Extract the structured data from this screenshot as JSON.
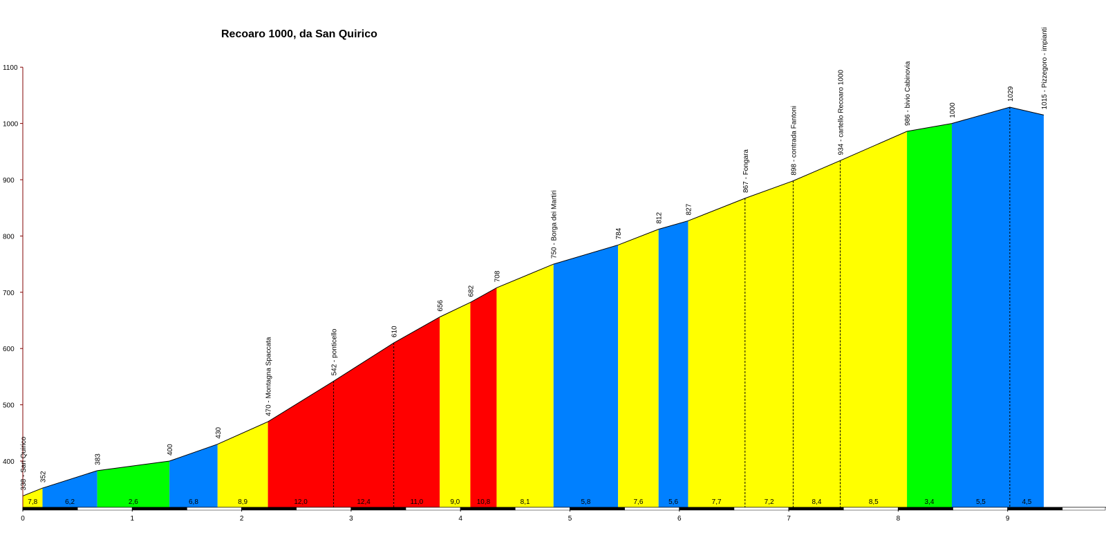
{
  "chart_data": {
    "type": "area",
    "title": "Recoaro 1000, da San Quirico",
    "xlabel": "",
    "ylabel": "",
    "xlim": [
      0,
      9.9
    ],
    "ylim": [
      320,
      1100
    ],
    "yticks": [
      400,
      500,
      600,
      700,
      800,
      900,
      1000,
      1100
    ],
    "xticks": [
      0,
      1,
      2,
      3,
      4,
      5,
      6,
      7,
      8,
      9
    ],
    "grid": false,
    "legend": "none",
    "colors": {
      "red": "#ff0000",
      "yellow": "#ffff00",
      "green": "#00ff00",
      "blue": "#0080ff",
      "axis": "#800000"
    },
    "points": [
      {
        "km": 0.0,
        "alt": 338,
        "label": "338 - San Quirico"
      },
      {
        "km": 0.18,
        "alt": 352,
        "label": "352"
      },
      {
        "km": 0.68,
        "alt": 383,
        "label": "383"
      },
      {
        "km": 1.34,
        "alt": 400,
        "label": "400"
      },
      {
        "km": 1.78,
        "alt": 430,
        "label": "430"
      },
      {
        "km": 2.24,
        "alt": 470,
        "label": "470 - Montagna Spaccata"
      },
      {
        "km": 2.84,
        "alt": 542,
        "label": "542 - ponticello"
      },
      {
        "km": 3.39,
        "alt": 610,
        "label": "610"
      },
      {
        "km": 3.81,
        "alt": 656,
        "label": "656"
      },
      {
        "km": 4.09,
        "alt": 682,
        "label": "682"
      },
      {
        "km": 4.33,
        "alt": 708,
        "label": "708"
      },
      {
        "km": 4.85,
        "alt": 750,
        "label": "750 - Borga dei Martiri"
      },
      {
        "km": 5.44,
        "alt": 784,
        "label": "784"
      },
      {
        "km": 5.81,
        "alt": 812,
        "label": "812"
      },
      {
        "km": 6.08,
        "alt": 827,
        "label": "827"
      },
      {
        "km": 6.6,
        "alt": 867,
        "label": "867 - Fongara"
      },
      {
        "km": 7.04,
        "alt": 898,
        "label": "898 - contrada Fantoni"
      },
      {
        "km": 7.47,
        "alt": 934,
        "label": "934 - cartello Recoaro 1000"
      },
      {
        "km": 8.08,
        "alt": 986,
        "label": "986 - bivio Cabinovia"
      },
      {
        "km": 8.49,
        "alt": 1000,
        "label": "1000"
      },
      {
        "km": 9.02,
        "alt": 1029,
        "label": "1029"
      },
      {
        "km": 9.33,
        "alt": 1015,
        "label": "1015 - Pizzegoro - impianti"
      }
    ],
    "segments": [
      {
        "grade": "7,8",
        "color": "yellow"
      },
      {
        "grade": "6,2",
        "color": "blue"
      },
      {
        "grade": "2,6",
        "color": "green"
      },
      {
        "grade": "6,8",
        "color": "blue"
      },
      {
        "grade": "8,9",
        "color": "yellow"
      },
      {
        "grade": "12,0",
        "color": "red"
      },
      {
        "grade": "12,4",
        "color": "red"
      },
      {
        "grade": "11,0",
        "color": "red"
      },
      {
        "grade": "9,0",
        "color": "yellow"
      },
      {
        "grade": "10,8",
        "color": "red"
      },
      {
        "grade": "8,1",
        "color": "yellow"
      },
      {
        "grade": "5,8",
        "color": "blue"
      },
      {
        "grade": "7,6",
        "color": "yellow"
      },
      {
        "grade": "5,6",
        "color": "blue"
      },
      {
        "grade": "7,7",
        "color": "yellow"
      },
      {
        "grade": "7,2",
        "color": "yellow"
      },
      {
        "grade": "8,4",
        "color": "yellow"
      },
      {
        "grade": "8,5",
        "color": "yellow"
      },
      {
        "grade": "3,4",
        "color": "green"
      },
      {
        "grade": "5,5",
        "color": "blue"
      },
      {
        "grade": "4,5",
        "color": "blue"
      }
    ]
  }
}
